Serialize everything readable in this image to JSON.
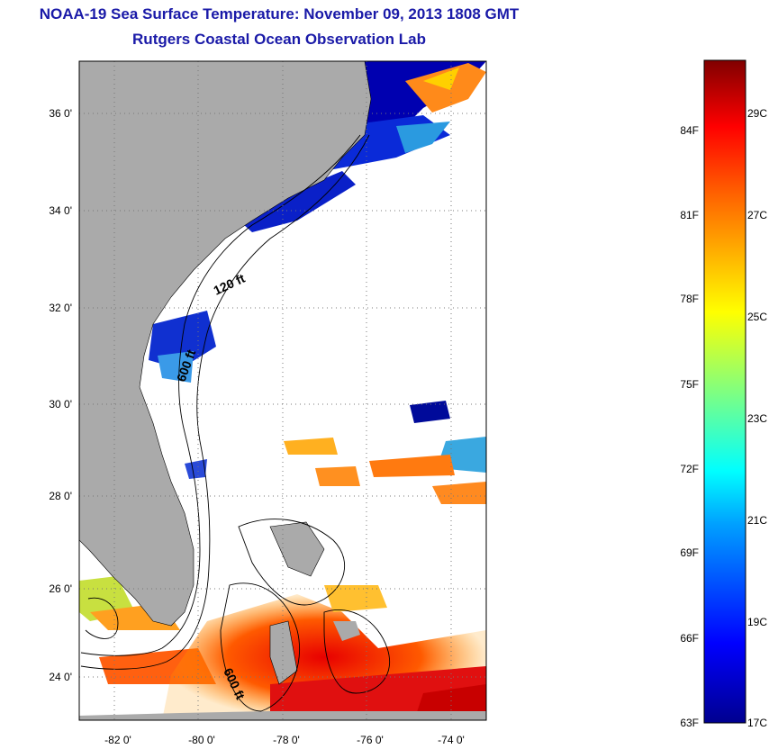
{
  "header": {
    "title_line1": "NOAA-19 Sea Surface Temperature:  November 09, 2013 1808 GMT",
    "title_line2": "Rutgers Coastal Ocean Observation Lab"
  },
  "map": {
    "lon_ticks": [
      "-82 0'",
      "-80 0'",
      "-78 0'",
      "-76 0'",
      "-74 0'"
    ],
    "lat_ticks": [
      "36 0'",
      "34 0'",
      "32 0'",
      "30 0'",
      "28 0'",
      "26 0'",
      "24 0'"
    ],
    "contour_labels": [
      "120 ft",
      "600 ft",
      "600 ft"
    ],
    "colors": {
      "land": "#aaaaaa",
      "ocean_no_data": "#ffffff",
      "frame": "#000000",
      "gridline": "#777777"
    }
  },
  "colorbar": {
    "fahrenheit_labels": [
      "84F",
      "81F",
      "78F",
      "75F",
      "72F",
      "69F",
      "66F",
      "63F"
    ],
    "celsius_labels": [
      "29C",
      "27C",
      "25C",
      "23C",
      "21C",
      "19C",
      "17C"
    ],
    "colormap": "jet",
    "range_f": [
      63,
      86
    ],
    "range_c": [
      17,
      30
    ]
  }
}
